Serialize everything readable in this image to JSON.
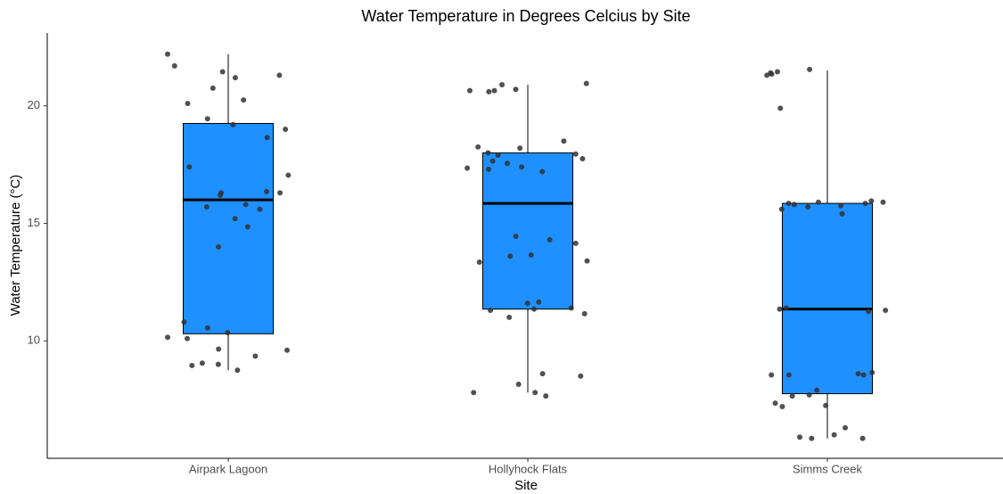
{
  "chart_data": {
    "type": "box",
    "title": "Water Temperature in Degrees Celcius by Site",
    "x_label": "Site",
    "y_label": "Water Temperature (°C)",
    "categories": [
      "Airpark Lagoon",
      "Hollyhock Flats",
      "Simms Creek"
    ],
    "boxes": [
      {
        "whislo": 8.75,
        "q1": 10.3,
        "med": 16.0,
        "q3": 19.25,
        "whishi": 22.2
      },
      {
        "whislo": 7.8,
        "q1": 11.35,
        "med": 15.85,
        "q3": 18.0,
        "whishi": 20.9
      },
      {
        "whislo": 5.85,
        "q1": 7.75,
        "med": 11.35,
        "q3": 15.85,
        "whishi": 21.5
      }
    ],
    "points": [
      [
        22.2,
        21.3,
        21.7,
        21.2,
        20.75,
        21.45,
        20.25,
        20.1,
        19.45,
        19.2,
        19.0,
        18.65,
        17.4,
        17.05,
        16.35,
        16.3,
        16.3,
        16.2,
        15.8,
        15.7,
        15.6,
        15.2,
        14.85,
        14.0,
        10.8,
        10.55,
        10.35,
        10.15,
        10.1,
        9.65,
        9.6,
        9.35,
        9.05,
        9.0,
        8.95,
        8.75
      ],
      [
        20.95,
        20.9,
        20.7,
        20.65,
        20.65,
        20.6,
        18.5,
        18.25,
        18.2,
        18.0,
        17.95,
        17.9,
        17.75,
        17.65,
        17.55,
        17.4,
        17.35,
        17.3,
        17.2,
        14.45,
        14.3,
        14.15,
        13.65,
        13.6,
        13.4,
        13.35,
        11.65,
        11.6,
        11.4,
        11.35,
        11.3,
        11.15,
        11.0,
        8.6,
        8.5,
        8.15,
        7.8,
        7.8,
        7.65
      ],
      [
        21.55,
        21.45,
        21.4,
        21.35,
        21.3,
        19.9,
        15.95,
        15.9,
        15.9,
        15.85,
        15.85,
        15.8,
        15.75,
        15.7,
        15.6,
        15.4,
        11.4,
        11.35,
        11.3,
        11.25,
        8.65,
        8.6,
        8.55,
        8.55,
        8.55,
        7.9,
        7.7,
        7.65,
        7.35,
        7.25,
        7.2,
        6.3,
        6.0,
        5.9,
        5.85,
        5.85
      ]
    ],
    "box_color": "#1e90ff",
    "point_color": "#333333",
    "ylim": [
      5.0,
      23.1
    ],
    "yticks": [
      10,
      15,
      20
    ],
    "grid": false
  }
}
